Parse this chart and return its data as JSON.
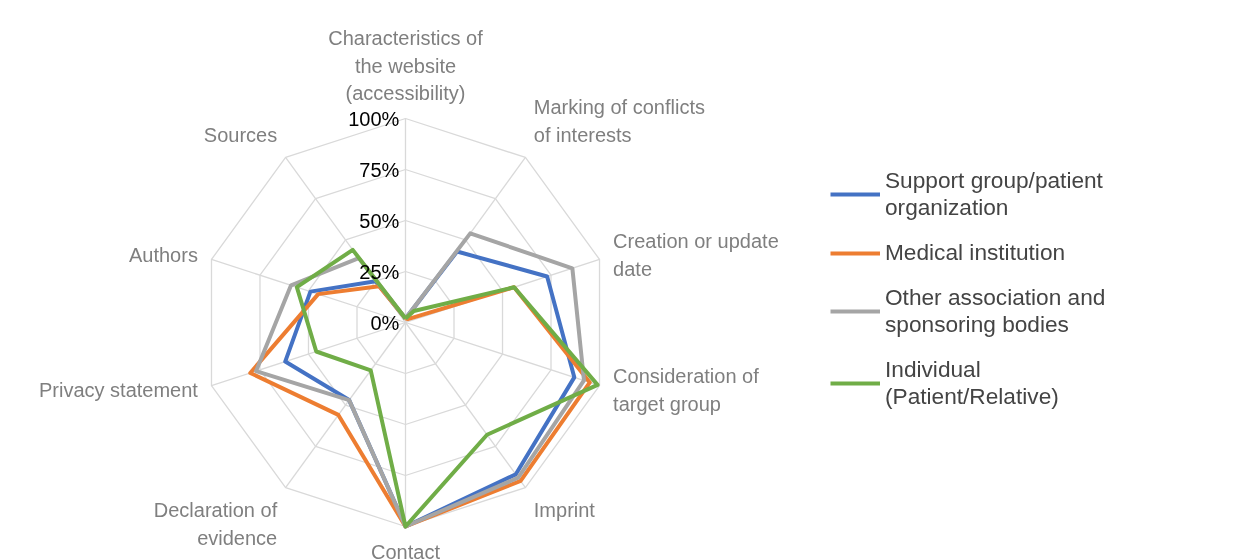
{
  "chart_data": {
    "type": "radar",
    "categories": [
      "Characteristics of the website (accessibility)",
      "Marking of conflicts of interests",
      "Creation or update date",
      "Consideration of target group",
      "Imprint",
      "Contact",
      "Declaration of evidence",
      "Privacy statement",
      "Authors",
      "Sources"
    ],
    "series": [
      {
        "name": "Support group/patient organization",
        "color": "#4472c4",
        "values": [
          0.02,
          0.43,
          0.73,
          0.87,
          0.92,
          1.0,
          0.47,
          0.62,
          0.49,
          0.25
        ]
      },
      {
        "name": "Medical institution",
        "color": "#ed7d31",
        "values": [
          0.02,
          0.02,
          0.56,
          0.95,
          0.96,
          1.0,
          0.56,
          0.8,
          0.45,
          0.22
        ]
      },
      {
        "name": "Other association and sponsoring bodies",
        "color": "#a5a5a5",
        "values": [
          0.02,
          0.54,
          0.86,
          0.92,
          0.94,
          1.0,
          0.47,
          0.77,
          0.59,
          0.39
        ]
      },
      {
        "name": "Individual (Patient/Relative)",
        "color": "#70ad47",
        "values": [
          0.02,
          0.07,
          0.56,
          0.99,
          0.68,
          1.0,
          0.29,
          0.46,
          0.56,
          0.44
        ]
      }
    ],
    "ylim": [
      0,
      1
    ],
    "yticks": [
      {
        "value": 0,
        "label": "0%"
      },
      {
        "value": 0.25,
        "label": "25%"
      },
      {
        "value": 0.5,
        "label": "50%"
      },
      {
        "value": 0.75,
        "label": "75%"
      },
      {
        "value": 1,
        "label": "100%"
      }
    ],
    "grid": true,
    "legend": "right",
    "line_style": "solid",
    "marker": "none"
  }
}
